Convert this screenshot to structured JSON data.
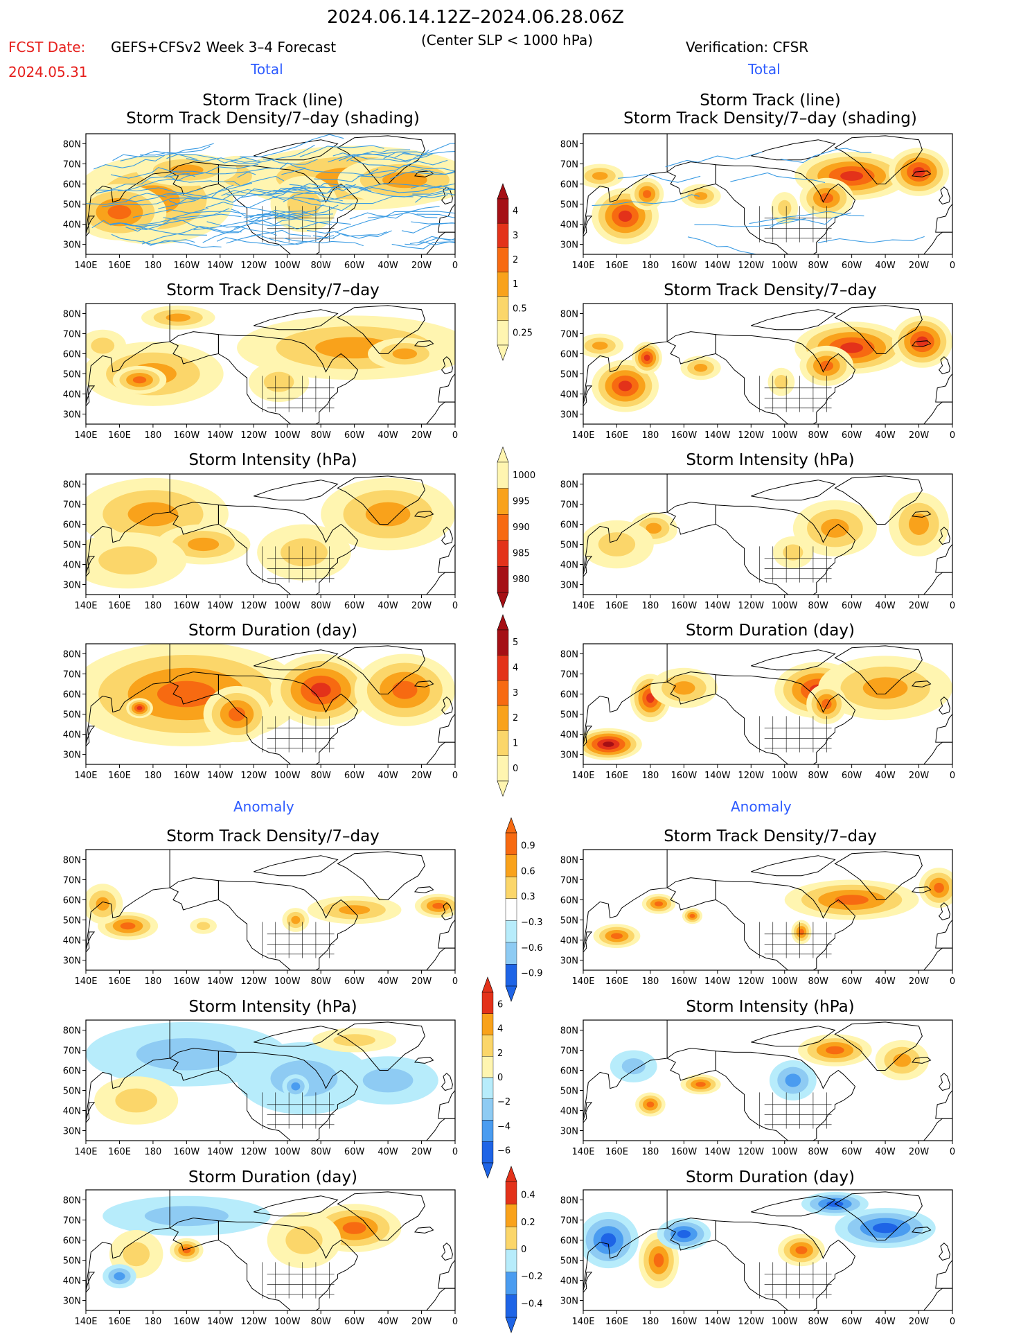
{
  "header": {
    "period": "2024.06.14.12Z–2024.06.28.06Z",
    "fcst_label": "FCST Date:",
    "fcst_date": "2024.05.31",
    "model": "GEFS+CFSv2 Week 3–4 Forecast",
    "criterion": "(Center SLP < 1000 hPa)",
    "verification": "Verification: CFSR"
  },
  "sections": {
    "total": "Total",
    "anomaly": "Anomaly"
  },
  "panel_titles": {
    "track_line": "Storm Track (line)",
    "track_shading": "Storm Track Density/7–day (shading)",
    "density": "Storm Track Density/7–day",
    "intensity": "Storm Intensity (hPa)",
    "duration": "Storm Duration (day)"
  },
  "axes": {
    "lon_ticks": [
      "140E",
      "160E",
      "180",
      "160W",
      "140W",
      "120W",
      "100W",
      "80W",
      "60W",
      "40W",
      "20W",
      "0"
    ],
    "lat_ticks": [
      "80N",
      "70N",
      "60N",
      "50N",
      "40N",
      "30N"
    ]
  },
  "colorbars": {
    "density_total": [
      "4",
      "3",
      "2",
      "1",
      "0.5",
      "0.25"
    ],
    "intensity_total": [
      "1000",
      "995",
      "990",
      "985",
      "980"
    ],
    "duration_total": [
      "5",
      "4",
      "3",
      "2",
      "1",
      "0"
    ],
    "density_anom": [
      "0.9",
      "0.6",
      "0.3",
      "−0.3",
      "−0.6",
      "−0.9"
    ],
    "intensity_anom": [
      "6",
      "4",
      "2",
      "0",
      "−2",
      "−4",
      "−6"
    ],
    "duration_anom": [
      "0.4",
      "0.2",
      "0",
      "−0.2",
      "−0.4"
    ]
  },
  "colors": {
    "pale_yellow": "#fff5b0",
    "light_orange": "#fbd66a",
    "orange": "#f9a21b",
    "dark_orange": "#f76a11",
    "red": "#e3321a",
    "dark_red": "#a50f15",
    "light_blue": "#b7ecfb",
    "mid_blue": "#8ecbf3",
    "blue": "#4a9cf0",
    "dark_blue": "#1e64e6",
    "track": "#3a9be3"
  }
}
